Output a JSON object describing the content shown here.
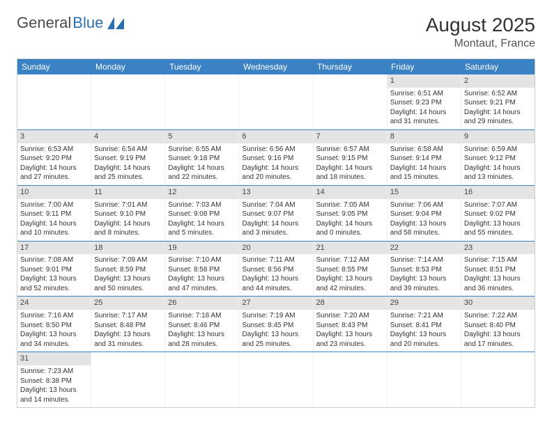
{
  "logo": {
    "text1": "General",
    "text2": "Blue"
  },
  "title": "August 2025",
  "location": "Montaut, France",
  "colors": {
    "header_bg": "#3b82c4",
    "header_text": "#ffffff",
    "daynum_bg": "#e4e4e4",
    "row_divider": "#3b82c4",
    "logo_gray": "#4a4a4a",
    "logo_blue": "#2c6fb0"
  },
  "dow": [
    "Sunday",
    "Monday",
    "Tuesday",
    "Wednesday",
    "Thursday",
    "Friday",
    "Saturday"
  ],
  "weeks": [
    [
      {
        "n": "",
        "sr": "",
        "ss": "",
        "dl": ""
      },
      {
        "n": "",
        "sr": "",
        "ss": "",
        "dl": ""
      },
      {
        "n": "",
        "sr": "",
        "ss": "",
        "dl": ""
      },
      {
        "n": "",
        "sr": "",
        "ss": "",
        "dl": ""
      },
      {
        "n": "",
        "sr": "",
        "ss": "",
        "dl": ""
      },
      {
        "n": "1",
        "sr": "Sunrise: 6:51 AM",
        "ss": "Sunset: 9:23 PM",
        "dl": "Daylight: 14 hours and 31 minutes."
      },
      {
        "n": "2",
        "sr": "Sunrise: 6:52 AM",
        "ss": "Sunset: 9:21 PM",
        "dl": "Daylight: 14 hours and 29 minutes."
      }
    ],
    [
      {
        "n": "3",
        "sr": "Sunrise: 6:53 AM",
        "ss": "Sunset: 9:20 PM",
        "dl": "Daylight: 14 hours and 27 minutes."
      },
      {
        "n": "4",
        "sr": "Sunrise: 6:54 AM",
        "ss": "Sunset: 9:19 PM",
        "dl": "Daylight: 14 hours and 25 minutes."
      },
      {
        "n": "5",
        "sr": "Sunrise: 6:55 AM",
        "ss": "Sunset: 9:18 PM",
        "dl": "Daylight: 14 hours and 22 minutes."
      },
      {
        "n": "6",
        "sr": "Sunrise: 6:56 AM",
        "ss": "Sunset: 9:16 PM",
        "dl": "Daylight: 14 hours and 20 minutes."
      },
      {
        "n": "7",
        "sr": "Sunrise: 6:57 AM",
        "ss": "Sunset: 9:15 PM",
        "dl": "Daylight: 14 hours and 18 minutes."
      },
      {
        "n": "8",
        "sr": "Sunrise: 6:58 AM",
        "ss": "Sunset: 9:14 PM",
        "dl": "Daylight: 14 hours and 15 minutes."
      },
      {
        "n": "9",
        "sr": "Sunrise: 6:59 AM",
        "ss": "Sunset: 9:12 PM",
        "dl": "Daylight: 14 hours and 13 minutes."
      }
    ],
    [
      {
        "n": "10",
        "sr": "Sunrise: 7:00 AM",
        "ss": "Sunset: 9:11 PM",
        "dl": "Daylight: 14 hours and 10 minutes."
      },
      {
        "n": "11",
        "sr": "Sunrise: 7:01 AM",
        "ss": "Sunset: 9:10 PM",
        "dl": "Daylight: 14 hours and 8 minutes."
      },
      {
        "n": "12",
        "sr": "Sunrise: 7:03 AM",
        "ss": "Sunset: 9:08 PM",
        "dl": "Daylight: 14 hours and 5 minutes."
      },
      {
        "n": "13",
        "sr": "Sunrise: 7:04 AM",
        "ss": "Sunset: 9:07 PM",
        "dl": "Daylight: 14 hours and 3 minutes."
      },
      {
        "n": "14",
        "sr": "Sunrise: 7:05 AM",
        "ss": "Sunset: 9:05 PM",
        "dl": "Daylight: 14 hours and 0 minutes."
      },
      {
        "n": "15",
        "sr": "Sunrise: 7:06 AM",
        "ss": "Sunset: 9:04 PM",
        "dl": "Daylight: 13 hours and 58 minutes."
      },
      {
        "n": "16",
        "sr": "Sunrise: 7:07 AM",
        "ss": "Sunset: 9:02 PM",
        "dl": "Daylight: 13 hours and 55 minutes."
      }
    ],
    [
      {
        "n": "17",
        "sr": "Sunrise: 7:08 AM",
        "ss": "Sunset: 9:01 PM",
        "dl": "Daylight: 13 hours and 52 minutes."
      },
      {
        "n": "18",
        "sr": "Sunrise: 7:09 AM",
        "ss": "Sunset: 8:59 PM",
        "dl": "Daylight: 13 hours and 50 minutes."
      },
      {
        "n": "19",
        "sr": "Sunrise: 7:10 AM",
        "ss": "Sunset: 8:58 PM",
        "dl": "Daylight: 13 hours and 47 minutes."
      },
      {
        "n": "20",
        "sr": "Sunrise: 7:11 AM",
        "ss": "Sunset: 8:56 PM",
        "dl": "Daylight: 13 hours and 44 minutes."
      },
      {
        "n": "21",
        "sr": "Sunrise: 7:12 AM",
        "ss": "Sunset: 8:55 PM",
        "dl": "Daylight: 13 hours and 42 minutes."
      },
      {
        "n": "22",
        "sr": "Sunrise: 7:14 AM",
        "ss": "Sunset: 8:53 PM",
        "dl": "Daylight: 13 hours and 39 minutes."
      },
      {
        "n": "23",
        "sr": "Sunrise: 7:15 AM",
        "ss": "Sunset: 8:51 PM",
        "dl": "Daylight: 13 hours and 36 minutes."
      }
    ],
    [
      {
        "n": "24",
        "sr": "Sunrise: 7:16 AM",
        "ss": "Sunset: 8:50 PM",
        "dl": "Daylight: 13 hours and 34 minutes."
      },
      {
        "n": "25",
        "sr": "Sunrise: 7:17 AM",
        "ss": "Sunset: 8:48 PM",
        "dl": "Daylight: 13 hours and 31 minutes."
      },
      {
        "n": "26",
        "sr": "Sunrise: 7:18 AM",
        "ss": "Sunset: 8:46 PM",
        "dl": "Daylight: 13 hours and 28 minutes."
      },
      {
        "n": "27",
        "sr": "Sunrise: 7:19 AM",
        "ss": "Sunset: 8:45 PM",
        "dl": "Daylight: 13 hours and 25 minutes."
      },
      {
        "n": "28",
        "sr": "Sunrise: 7:20 AM",
        "ss": "Sunset: 8:43 PM",
        "dl": "Daylight: 13 hours and 23 minutes."
      },
      {
        "n": "29",
        "sr": "Sunrise: 7:21 AM",
        "ss": "Sunset: 8:41 PM",
        "dl": "Daylight: 13 hours and 20 minutes."
      },
      {
        "n": "30",
        "sr": "Sunrise: 7:22 AM",
        "ss": "Sunset: 8:40 PM",
        "dl": "Daylight: 13 hours and 17 minutes."
      }
    ],
    [
      {
        "n": "31",
        "sr": "Sunrise: 7:23 AM",
        "ss": "Sunset: 8:38 PM",
        "dl": "Daylight: 13 hours and 14 minutes."
      },
      {
        "n": "",
        "sr": "",
        "ss": "",
        "dl": ""
      },
      {
        "n": "",
        "sr": "",
        "ss": "",
        "dl": ""
      },
      {
        "n": "",
        "sr": "",
        "ss": "",
        "dl": ""
      },
      {
        "n": "",
        "sr": "",
        "ss": "",
        "dl": ""
      },
      {
        "n": "",
        "sr": "",
        "ss": "",
        "dl": ""
      },
      {
        "n": "",
        "sr": "",
        "ss": "",
        "dl": ""
      }
    ]
  ]
}
